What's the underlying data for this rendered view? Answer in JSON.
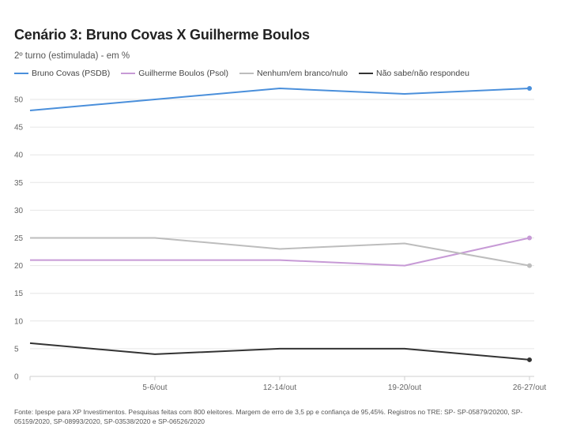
{
  "header": {
    "title": "Cenário 3: Bruno Covas X Guilherme Boulos",
    "subtitle": "2º turno (estimulada) - em %"
  },
  "legend": [
    {
      "label": "Bruno Covas (PSDB)",
      "color": "#4a8fdb"
    },
    {
      "label": "Guilherme Boulos (Psol)",
      "color": "#c79ad6"
    },
    {
      "label": "Nenhum/em branco/nulo",
      "color": "#bdbdbd"
    },
    {
      "label": "Não sabe/não respondeu",
      "color": "#333333"
    }
  ],
  "chart_data": {
    "type": "line",
    "categories": [
      "",
      "5-6/out",
      "12-14/out",
      "19-20/out",
      "26-27/out"
    ],
    "series": [
      {
        "name": "Bruno Covas (PSDB)",
        "color": "#4a8fdb",
        "values": [
          48,
          50,
          52,
          51,
          52
        ]
      },
      {
        "name": "Guilherme Boulos (Psol)",
        "color": "#c79ad6",
        "values": [
          21,
          21,
          21,
          20,
          25
        ]
      },
      {
        "name": "Nenhum/em branco/nulo",
        "color": "#bdbdbd",
        "values": [
          25,
          25,
          23,
          24,
          20
        ]
      },
      {
        "name": "Não sabe/não respondeu",
        "color": "#333333",
        "values": [
          6,
          4,
          5,
          5,
          3
        ]
      }
    ],
    "yticks": [
      0,
      5,
      10,
      15,
      20,
      25,
      30,
      35,
      40,
      45,
      50
    ],
    "ylim": [
      0,
      50
    ],
    "grid": true,
    "legend_position": "top-left",
    "end_markers": true
  },
  "footer": {
    "source": "Fonte: Ipespe para XP Investimentos. Pesquisas feitas com 800 eleitores. Margem de erro de 3,5 pp e confiança de 95,45%. Registros no TRE: SP- SP-05879/20200, SP-05159/2020, SP-08993/2020, SP-03538/2020 e SP-06526/2020"
  }
}
